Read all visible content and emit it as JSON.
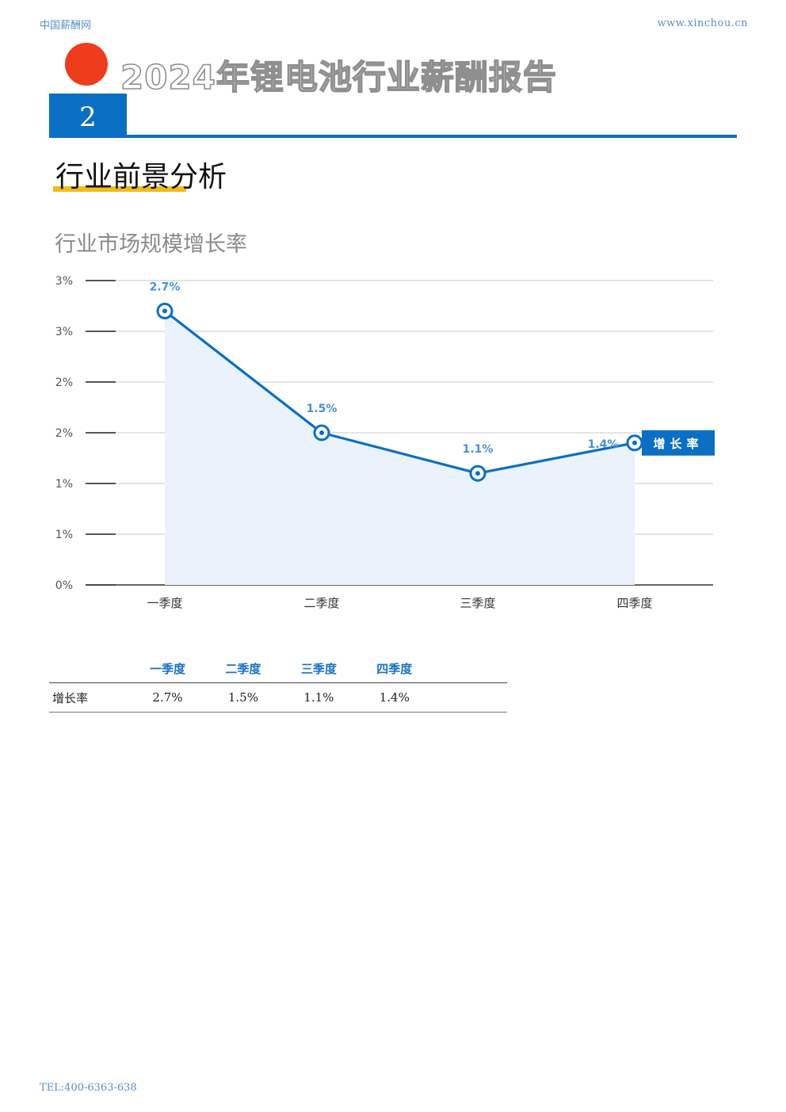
{
  "header": {
    "site_name": "中国薪酬网",
    "url": "www.xinchou.cn"
  },
  "report": {
    "title": "2024年锂电池行业薪酬报告",
    "section_number": "2"
  },
  "section": {
    "title": "行业前景分析"
  },
  "chart_data": {
    "type": "line",
    "title": "行业市场规模增长率",
    "categories": [
      "一季度",
      "二季度",
      "三季度",
      "四季度"
    ],
    "series": [
      {
        "name": "增长率",
        "values": [
          2.7,
          1.5,
          1.1,
          1.4
        ],
        "labels": [
          "2.7%",
          "1.5%",
          "1.1%",
          "1.4%"
        ]
      }
    ],
    "y_tick_labels": [
      "0%",
      "1%",
      "1%",
      "2%",
      "2%",
      "3%",
      "3%"
    ],
    "ylim": [
      0,
      3.0
    ],
    "grid": true,
    "legend": "right",
    "colors": {
      "line": "#0b6fc3",
      "area": "#eaf2fb",
      "label": "#4a90d9",
      "grid": "#d4d4d4"
    }
  },
  "table": {
    "headers": [
      "一季度",
      "二季度",
      "三季度",
      "四季度"
    ],
    "rows": [
      {
        "label": "增长率",
        "values": [
          "2.7%",
          "1.5%",
          "1.1%",
          "1.4%"
        ]
      }
    ]
  },
  "footer": {
    "tel": "TEL:400-6363-638"
  }
}
